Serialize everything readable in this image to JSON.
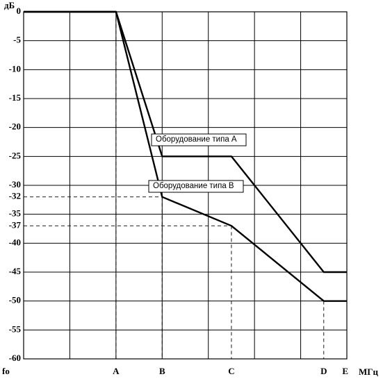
{
  "chart_data": {
    "type": "line",
    "ylabel": "дБ",
    "xlabel": "МГц",
    "ylim": [
      -60,
      0
    ],
    "grid": true,
    "yticks": [
      0,
      -5,
      -10,
      -15,
      -20,
      -25,
      -30,
      -35,
      -40,
      -45,
      -50,
      -55,
      -60
    ],
    "extra_yticks": [
      {
        "label": "-32",
        "value": -32
      },
      {
        "label": "-37",
        "value": -37
      }
    ],
    "x_categories": [
      {
        "label": "fo",
        "x": 0
      },
      {
        "label": "A",
        "x": 2
      },
      {
        "label": "B",
        "x": 3
      },
      {
        "label": "C",
        "x": 4.5
      },
      {
        "label": "D",
        "x": 6.5
      },
      {
        "label": "E",
        "x": 7
      }
    ],
    "series": [
      {
        "name": "Оборудование типа А",
        "points": [
          [
            0,
            0
          ],
          [
            2,
            0
          ],
          [
            3,
            -25
          ],
          [
            4.5,
            -25
          ],
          [
            6.5,
            -45
          ],
          [
            7,
            -45
          ]
        ]
      },
      {
        "name": "Оборудование типа В",
        "points": [
          [
            0,
            0
          ],
          [
            2,
            0
          ],
          [
            3,
            -32
          ],
          [
            4.5,
            -37
          ],
          [
            6.5,
            -50
          ],
          [
            7,
            -50
          ]
        ]
      }
    ]
  }
}
